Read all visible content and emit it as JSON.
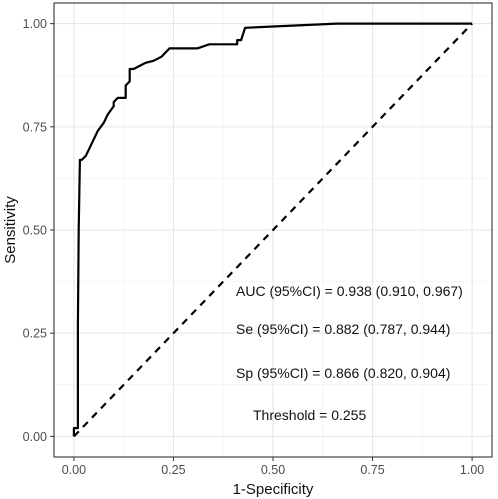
{
  "chart_data": {
    "type": "line",
    "xlabel": "1-Specificity",
    "ylabel": "Sensitivity",
    "xlim": [
      -0.05,
      1.05
    ],
    "ylim": [
      -0.05,
      1.05
    ],
    "x_ticks": [
      0,
      0.25,
      0.5,
      0.75,
      1
    ],
    "y_ticks": [
      0,
      0.25,
      0.5,
      0.75,
      1
    ],
    "x_tick_labels": [
      "0.00",
      "0.25",
      "0.50",
      "0.75",
      "1.00"
    ],
    "y_tick_labels": [
      "0.00",
      "0.25",
      "0.50",
      "0.75",
      "1.00"
    ],
    "grid": true,
    "legend": "none",
    "series": [
      {
        "x": [
          0,
          0.0,
          0.01,
          0.01,
          0.012,
          0.015,
          0.02,
          0.03,
          0.05,
          0.06,
          0.075,
          0.085,
          0.1,
          0.1,
          0.11,
          0.13,
          0.13,
          0.14,
          0.14,
          0.15,
          0.17,
          0.18,
          0.2,
          0.22,
          0.24,
          0.31,
          0.34,
          0.38,
          0.41,
          0.41,
          0.42,
          0.43,
          0.66,
          0.66,
          1.0
        ],
        "y": [
          0,
          0.02,
          0.02,
          0.27,
          0.5,
          0.67,
          0.67,
          0.68,
          0.72,
          0.74,
          0.76,
          0.78,
          0.8,
          0.81,
          0.82,
          0.82,
          0.85,
          0.86,
          0.89,
          0.89,
          0.9,
          0.905,
          0.91,
          0.92,
          0.94,
          0.94,
          0.95,
          0.95,
          0.95,
          0.96,
          0.96,
          0.99,
          1.0,
          1.0,
          1.0
        ],
        "style": "solid",
        "color": "#000000"
      },
      {
        "x": [
          0,
          1
        ],
        "y": [
          0,
          1
        ],
        "style": "dashed",
        "color": "#000000"
      }
    ],
    "annotations": [
      "AUC (95%CI) = 0.938 (0.910, 0.967)",
      "Se (95%CI) = 0.882 (0.787, 0.944)",
      "Sp (95%CI) = 0.866 (0.820, 0.904)",
      "Threshold = 0.255"
    ]
  }
}
